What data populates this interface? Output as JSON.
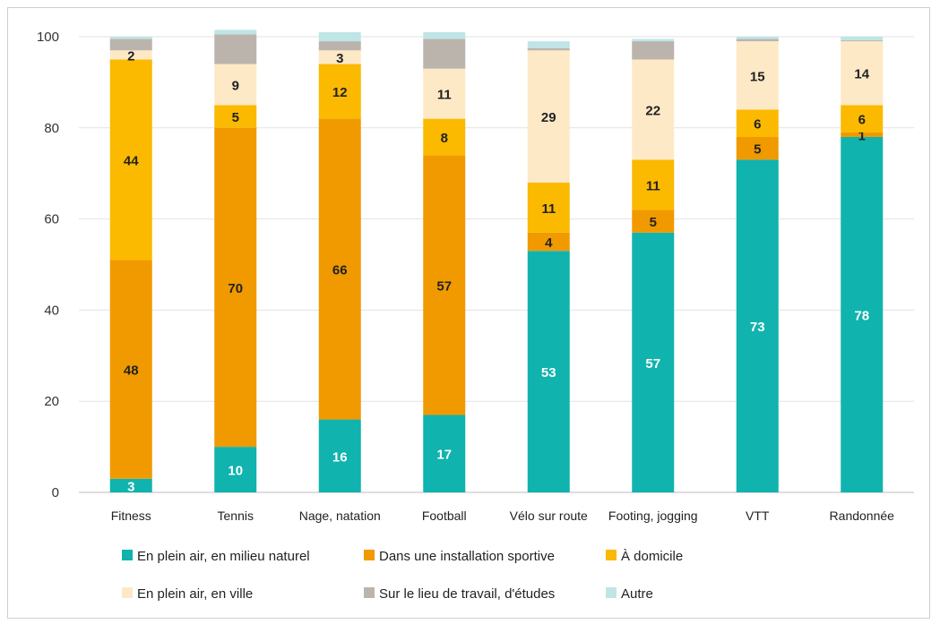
{
  "chart_data": {
    "type": "bar",
    "stacked": true,
    "ylim": [
      0,
      100
    ],
    "yticks": [
      0,
      20,
      40,
      60,
      80,
      100
    ],
    "grid": true,
    "legend_position": "bottom",
    "categories": [
      "Fitness",
      "Tennis",
      "Nage, natation",
      "Football",
      "Vélo sur route",
      "Footing, jogging",
      "VTT",
      "Randonnée"
    ],
    "series": [
      {
        "name": "En plein air, en milieu naturel",
        "color": "#10b3ae",
        "label_color": "#ffffff",
        "values": [
          3,
          10,
          16,
          17,
          53,
          57,
          73,
          78
        ],
        "labels": [
          "3",
          "10",
          "16",
          "17",
          "53",
          "57",
          "73",
          "78"
        ]
      },
      {
        "name": "Dans une installation sportive",
        "color": "#f09a00",
        "label_color": "#222222",
        "values": [
          48,
          70,
          66,
          57,
          4,
          5,
          5,
          1
        ],
        "labels": [
          "48",
          "70",
          "66",
          "57",
          "4",
          "5",
          "5",
          "1"
        ]
      },
      {
        "name": "À domicile",
        "color": "#fbb900",
        "label_color": "#222222",
        "values": [
          44,
          5,
          12,
          8,
          11,
          11,
          6,
          6
        ],
        "labels": [
          "44",
          "5",
          "12",
          "8",
          "11",
          "11",
          "6",
          "6"
        ]
      },
      {
        "name": "En plein air, en ville",
        "color": "#fde9c6",
        "label_color": "#222222",
        "values": [
          2,
          9,
          3,
          11,
          29,
          22,
          15,
          14
        ],
        "labels": [
          "2",
          "9",
          "3",
          "11",
          "29",
          "22",
          "15",
          "14"
        ]
      },
      {
        "name": "Sur le lieu de travail, d'études",
        "color": "#bbb4ad",
        "label_color": "#222222",
        "values": [
          2.5,
          6.5,
          2,
          6.5,
          0.5,
          4,
          0.5,
          0.2
        ],
        "labels": [
          "",
          "",
          "",
          "",
          "",
          "",
          "",
          ""
        ]
      },
      {
        "name": "Autre",
        "color": "#bfe5e6",
        "label_color": "#222222",
        "values": [
          0.5,
          1,
          2,
          1.5,
          1.5,
          0.5,
          0.5,
          0.8
        ],
        "labels": [
          "",
          "",
          "",
          "",
          "",
          "",
          "",
          ""
        ]
      }
    ]
  }
}
